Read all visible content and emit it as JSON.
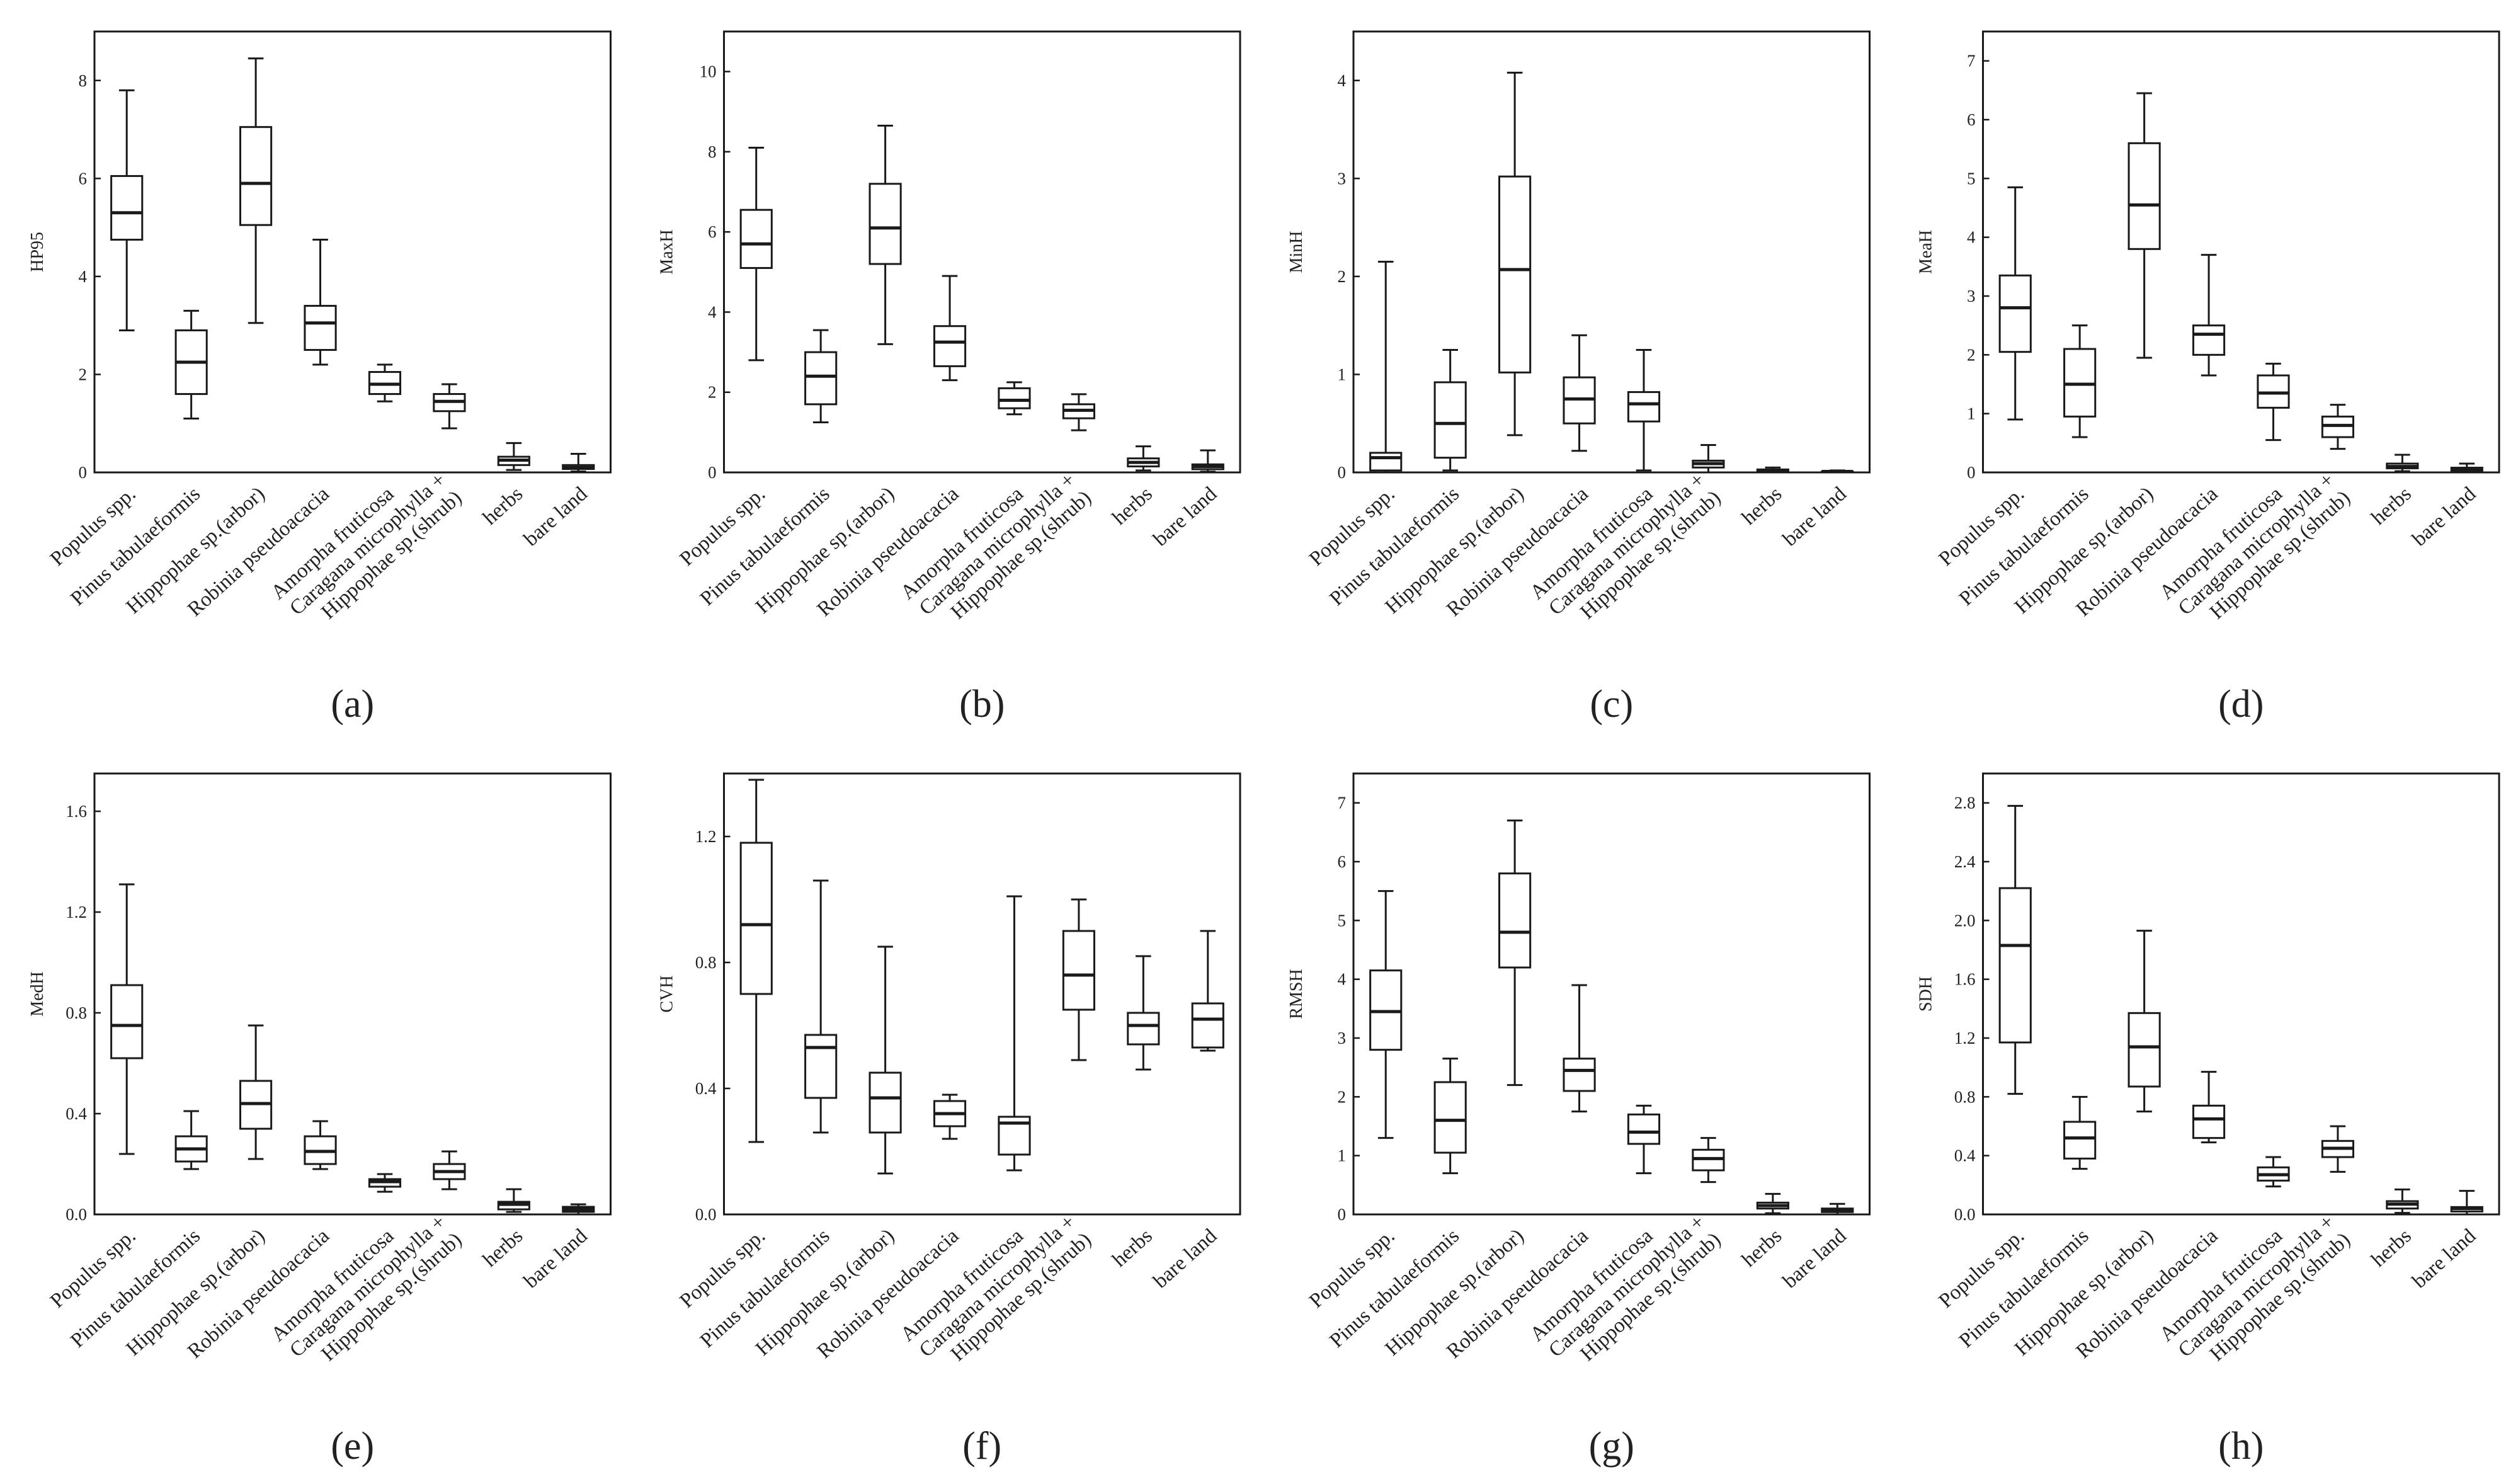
{
  "chart_data": [
    {
      "type": "box",
      "panel_label": "(a)",
      "ylabel": "HP95",
      "ylim": [
        0,
        9
      ],
      "yticks": [
        0,
        2,
        4,
        6,
        8
      ],
      "categories": [
        "Populus spp.",
        "Pinus tabulaeformis",
        "Hippophae sp.(arbor)",
        "Robinia pseudoacacia",
        "Amorpha fruticosa",
        "Caragana microphylla +|Hippophae sp.(shrub)",
        "herbs",
        "bare land"
      ],
      "series": [
        {
          "name": "Populus spp.",
          "min": 2.9,
          "q1": 4.75,
          "median": 5.3,
          "q3": 6.05,
          "max": 7.8
        },
        {
          "name": "Pinus tabulaeformis",
          "min": 1.1,
          "q1": 1.6,
          "median": 2.25,
          "q3": 2.9,
          "max": 3.3
        },
        {
          "name": "Hippophae sp.(arbor)",
          "min": 3.05,
          "q1": 5.05,
          "median": 5.9,
          "q3": 7.05,
          "max": 8.45
        },
        {
          "name": "Robinia pseudoacacia",
          "min": 2.2,
          "q1": 2.5,
          "median": 3.05,
          "q3": 3.4,
          "max": 4.75
        },
        {
          "name": "Amorpha fruticosa",
          "min": 1.45,
          "q1": 1.6,
          "median": 1.8,
          "q3": 2.05,
          "max": 2.2
        },
        {
          "name": "Caragana microphylla + Hippophae sp.(shrub)",
          "min": 0.9,
          "q1": 1.25,
          "median": 1.45,
          "q3": 1.6,
          "max": 1.8
        },
        {
          "name": "herbs",
          "min": 0.05,
          "q1": 0.15,
          "median": 0.25,
          "q3": 0.32,
          "max": 0.6
        },
        {
          "name": "bare land",
          "min": 0.02,
          "q1": 0.07,
          "median": 0.1,
          "q3": 0.15,
          "max": 0.38
        }
      ]
    },
    {
      "type": "box",
      "panel_label": "(b)",
      "ylabel": "MaxH",
      "ylim": [
        0,
        11
      ],
      "yticks": [
        0,
        2,
        4,
        6,
        8,
        10
      ],
      "categories": [
        "Populus spp.",
        "Pinus tabulaeformis",
        "Hippophae sp.(arbor)",
        "Robinia pseudoacacia",
        "Amorpha fruticosa",
        "Caragana microphylla +|Hippophae sp.(shrub)",
        "herbs",
        "bare land"
      ],
      "series": [
        {
          "name": "Populus spp.",
          "min": 2.8,
          "q1": 5.1,
          "median": 5.7,
          "q3": 6.55,
          "max": 8.1
        },
        {
          "name": "Pinus tabulaeformis",
          "min": 1.25,
          "q1": 1.7,
          "median": 2.4,
          "q3": 3.0,
          "max": 3.55
        },
        {
          "name": "Hippophae sp.(arbor)",
          "min": 3.2,
          "q1": 5.2,
          "median": 6.1,
          "q3": 7.2,
          "max": 8.65
        },
        {
          "name": "Robinia pseudoacacia",
          "min": 2.3,
          "q1": 2.65,
          "median": 3.25,
          "q3": 3.65,
          "max": 4.9
        },
        {
          "name": "Amorpha fruticosa",
          "min": 1.45,
          "q1": 1.6,
          "median": 1.8,
          "q3": 2.1,
          "max": 2.25
        },
        {
          "name": "Caragana microphylla + Hippophae sp.(shrub)",
          "min": 1.05,
          "q1": 1.35,
          "median": 1.55,
          "q3": 1.7,
          "max": 1.95
        },
        {
          "name": "herbs",
          "min": 0.05,
          "q1": 0.15,
          "median": 0.25,
          "q3": 0.35,
          "max": 0.65
        },
        {
          "name": "bare land",
          "min": 0.02,
          "q1": 0.08,
          "median": 0.15,
          "q3": 0.2,
          "max": 0.55
        }
      ]
    },
    {
      "type": "box",
      "panel_label": "(c)",
      "ylabel": "MinH",
      "ylim": [
        0,
        4.5
      ],
      "yticks": [
        0,
        1,
        2,
        3,
        4
      ],
      "categories": [
        "Populus spp.",
        "Pinus tabulaeformis",
        "Hippophae sp.(arbor)",
        "Robinia pseudoacacia",
        "Amorpha fruticosa",
        "Caragana microphylla +|Hippophae sp.(shrub)",
        "herbs",
        "bare land"
      ],
      "series": [
        {
          "name": "Populus spp.",
          "min": 0.0,
          "q1": 0.02,
          "median": 0.15,
          "q3": 0.2,
          "max": 2.15
        },
        {
          "name": "Pinus tabulaeformis",
          "min": 0.02,
          "q1": 0.15,
          "median": 0.5,
          "q3": 0.92,
          "max": 1.25
        },
        {
          "name": "Hippophae sp.(arbor)",
          "min": 0.38,
          "q1": 1.02,
          "median": 2.07,
          "q3": 3.02,
          "max": 4.08
        },
        {
          "name": "Robinia pseudoacacia",
          "min": 0.22,
          "q1": 0.5,
          "median": 0.75,
          "q3": 0.97,
          "max": 1.4
        },
        {
          "name": "Amorpha fruticosa",
          "min": 0.02,
          "q1": 0.52,
          "median": 0.7,
          "q3": 0.82,
          "max": 1.25
        },
        {
          "name": "Caragana microphylla + Hippophae sp.(shrub)",
          "min": 0.0,
          "q1": 0.05,
          "median": 0.09,
          "q3": 0.12,
          "max": 0.28
        },
        {
          "name": "herbs",
          "min": 0.0,
          "q1": 0.01,
          "median": 0.02,
          "q3": 0.03,
          "max": 0.05
        },
        {
          "name": "bare land",
          "min": 0.0,
          "q1": 0.0,
          "median": 0.01,
          "q3": 0.01,
          "max": 0.02
        }
      ]
    },
    {
      "type": "box",
      "panel_label": "(d)",
      "ylabel": "MeaH",
      "ylim": [
        0,
        7.5
      ],
      "yticks": [
        0,
        1,
        2,
        3,
        4,
        5,
        6,
        7
      ],
      "categories": [
        "Populus spp.",
        "Pinus tabulaeformis",
        "Hippophae sp.(arbor)",
        "Robinia pseudoacacia",
        "Amorpha fruticosa",
        "Caragana microphylla +|Hippophae sp.(shrub)",
        "herbs",
        "bare land"
      ],
      "series": [
        {
          "name": "Populus spp.",
          "min": 0.9,
          "q1": 2.05,
          "median": 2.8,
          "q3": 3.35,
          "max": 4.85
        },
        {
          "name": "Pinus tabulaeformis",
          "min": 0.6,
          "q1": 0.95,
          "median": 1.5,
          "q3": 2.1,
          "max": 2.5
        },
        {
          "name": "Hippophae sp.(arbor)",
          "min": 1.95,
          "q1": 3.8,
          "median": 4.55,
          "q3": 5.6,
          "max": 6.45
        },
        {
          "name": "Robinia pseudoacacia",
          "min": 1.65,
          "q1": 2.0,
          "median": 2.35,
          "q3": 2.5,
          "max": 3.7
        },
        {
          "name": "Amorpha fruticosa",
          "min": 0.55,
          "q1": 1.1,
          "median": 1.35,
          "q3": 1.65,
          "max": 1.85
        },
        {
          "name": "Caragana microphylla + Hippophae sp.(shrub)",
          "min": 0.4,
          "q1": 0.6,
          "median": 0.8,
          "q3": 0.95,
          "max": 1.15
        },
        {
          "name": "herbs",
          "min": 0.02,
          "q1": 0.07,
          "median": 0.1,
          "q3": 0.15,
          "max": 0.3
        },
        {
          "name": "bare land",
          "min": 0.0,
          "q1": 0.03,
          "median": 0.06,
          "q3": 0.08,
          "max": 0.15
        }
      ]
    },
    {
      "type": "box",
      "panel_label": "(e)",
      "ylabel": "MedH",
      "ylim": [
        0,
        1.75
      ],
      "yticks": [
        0,
        0.4,
        0.8,
        1.2,
        1.6
      ],
      "ytick_labels": [
        "0.0",
        "0.4",
        "0.8",
        "1.2",
        "1.6"
      ],
      "categories": [
        "Populus spp.",
        "Pinus tabulaeformis",
        "Hippophae sp.(arbor)",
        "Robinia pseudoacacia",
        "Amorpha fruticosa",
        "Caragana microphylla +|Hippophae sp.(shrub)",
        "herbs",
        "bare land"
      ],
      "series": [
        {
          "name": "Populus spp.",
          "min": 0.24,
          "q1": 0.62,
          "median": 0.75,
          "q3": 0.91,
          "max": 1.31
        },
        {
          "name": "Pinus tabulaeformis",
          "min": 0.18,
          "q1": 0.21,
          "median": 0.26,
          "q3": 0.31,
          "max": 0.41
        },
        {
          "name": "Hippophae sp.(arbor)",
          "min": 0.22,
          "q1": 0.34,
          "median": 0.44,
          "q3": 0.53,
          "max": 0.75
        },
        {
          "name": "Robinia pseudoacacia",
          "min": 0.18,
          "q1": 0.2,
          "median": 0.25,
          "q3": 0.31,
          "max": 0.37
        },
        {
          "name": "Amorpha fruticosa",
          "min": 0.09,
          "q1": 0.11,
          "median": 0.13,
          "q3": 0.14,
          "max": 0.16
        },
        {
          "name": "Caragana microphylla + Hippophae sp.(shrub)",
          "min": 0.1,
          "q1": 0.14,
          "median": 0.17,
          "q3": 0.2,
          "max": 0.25
        },
        {
          "name": "herbs",
          "min": 0.01,
          "q1": 0.02,
          "median": 0.04,
          "q3": 0.05,
          "max": 0.1
        },
        {
          "name": "bare land",
          "min": 0.0,
          "q1": 0.01,
          "median": 0.02,
          "q3": 0.03,
          "max": 0.04
        }
      ]
    },
    {
      "type": "box",
      "panel_label": "(f)",
      "ylabel": "CVH",
      "ylim": [
        0,
        1.4
      ],
      "yticks": [
        0,
        0.4,
        0.8,
        1.2
      ],
      "ytick_labels": [
        "0.0",
        "0.4",
        "0.8",
        "1.2"
      ],
      "categories": [
        "Populus spp.",
        "Pinus tabulaeformis",
        "Hippophae sp.(arbor)",
        "Robinia pseudoacacia",
        "Amorpha fruticosa",
        "Caragana microphylla +|Hippophae sp.(shrub)",
        "herbs",
        "bare land"
      ],
      "series": [
        {
          "name": "Populus spp.",
          "min": 0.23,
          "q1": 0.7,
          "median": 0.92,
          "q3": 1.18,
          "max": 1.38
        },
        {
          "name": "Pinus tabulaeformis",
          "min": 0.26,
          "q1": 0.37,
          "median": 0.53,
          "q3": 0.57,
          "max": 1.06
        },
        {
          "name": "Hippophae sp.(arbor)",
          "min": 0.13,
          "q1": 0.26,
          "median": 0.37,
          "q3": 0.45,
          "max": 0.85
        },
        {
          "name": "Robinia pseudoacacia",
          "min": 0.24,
          "q1": 0.28,
          "median": 0.32,
          "q3": 0.36,
          "max": 0.38
        },
        {
          "name": "Amorpha fruticosa",
          "min": 0.14,
          "q1": 0.19,
          "median": 0.29,
          "q3": 0.31,
          "max": 1.01
        },
        {
          "name": "Caragana microphylla + Hippophae sp.(shrub)",
          "min": 0.49,
          "q1": 0.65,
          "median": 0.76,
          "q3": 0.9,
          "max": 1.0
        },
        {
          "name": "herbs",
          "min": 0.46,
          "q1": 0.54,
          "median": 0.6,
          "q3": 0.64,
          "max": 0.82
        },
        {
          "name": "bare land",
          "min": 0.52,
          "q1": 0.53,
          "median": 0.62,
          "q3": 0.67,
          "max": 0.9
        }
      ]
    },
    {
      "type": "box",
      "panel_label": "(g)",
      "ylabel": "RMSH",
      "ylim": [
        0,
        7.5
      ],
      "yticks": [
        0,
        1,
        2,
        3,
        4,
        5,
        6,
        7
      ],
      "categories": [
        "Populus spp.",
        "Pinus tabulaeformis",
        "Hippophae sp.(arbor)",
        "Robinia pseudoacacia",
        "Amorpha fruticosa",
        "Caragana microphylla +|Hippophae sp.(shrub)",
        "herbs",
        "bare land"
      ],
      "series": [
        {
          "name": "Populus spp.",
          "min": 1.3,
          "q1": 2.8,
          "median": 3.45,
          "q3": 4.15,
          "max": 5.5
        },
        {
          "name": "Pinus tabulaeformis",
          "min": 0.7,
          "q1": 1.05,
          "median": 1.6,
          "q3": 2.25,
          "max": 2.65
        },
        {
          "name": "Hippophae sp.(arbor)",
          "min": 2.2,
          "q1": 4.2,
          "median": 4.8,
          "q3": 5.8,
          "max": 6.7
        },
        {
          "name": "Robinia pseudoacacia",
          "min": 1.75,
          "q1": 2.1,
          "median": 2.45,
          "q3": 2.65,
          "max": 3.9
        },
        {
          "name": "Amorpha fruticosa",
          "min": 0.7,
          "q1": 1.2,
          "median": 1.4,
          "q3": 1.7,
          "max": 1.85
        },
        {
          "name": "Caragana microphylla + Hippophae sp.(shrub)",
          "min": 0.55,
          "q1": 0.75,
          "median": 0.95,
          "q3": 1.1,
          "max": 1.3
        },
        {
          "name": "herbs",
          "min": 0.02,
          "q1": 0.1,
          "median": 0.15,
          "q3": 0.2,
          "max": 0.35
        },
        {
          "name": "bare land",
          "min": 0.0,
          "q1": 0.04,
          "median": 0.07,
          "q3": 0.1,
          "max": 0.18
        }
      ]
    },
    {
      "type": "box",
      "panel_label": "(h)",
      "ylabel": "SDH",
      "ylim": [
        0,
        3.0
      ],
      "yticks": [
        0,
        0.4,
        0.8,
        1.2,
        1.6,
        2.0,
        2.4,
        2.8
      ],
      "ytick_labels": [
        "0.0",
        "0.4",
        "0.8",
        "1.2",
        "1.6",
        "2.0",
        "2.4",
        "2.8"
      ],
      "categories": [
        "Populus spp.",
        "Pinus tabulaeformis",
        "Hippophae sp.(arbor)",
        "Robinia pseudoacacia",
        "Amorpha fruticosa",
        "Caragana microphylla +|Hippophae sp.(shrub)",
        "herbs",
        "bare land"
      ],
      "series": [
        {
          "name": "Populus spp.",
          "min": 0.82,
          "q1": 1.17,
          "median": 1.83,
          "q3": 2.22,
          "max": 2.78
        },
        {
          "name": "Pinus tabulaeformis",
          "min": 0.31,
          "q1": 0.38,
          "median": 0.52,
          "q3": 0.63,
          "max": 0.8
        },
        {
          "name": "Hippophae sp.(arbor)",
          "min": 0.7,
          "q1": 0.87,
          "median": 1.14,
          "q3": 1.37,
          "max": 1.93
        },
        {
          "name": "Robinia pseudoacacia",
          "min": 0.49,
          "q1": 0.52,
          "median": 0.65,
          "q3": 0.74,
          "max": 0.97
        },
        {
          "name": "Amorpha fruticosa",
          "min": 0.19,
          "q1": 0.23,
          "median": 0.27,
          "q3": 0.32,
          "max": 0.39
        },
        {
          "name": "Caragana microphylla + Hippophae sp.(shrub)",
          "min": 0.29,
          "q1": 0.39,
          "median": 0.45,
          "q3": 0.5,
          "max": 0.6
        },
        {
          "name": "herbs",
          "min": 0.01,
          "q1": 0.04,
          "median": 0.07,
          "q3": 0.09,
          "max": 0.17
        },
        {
          "name": "bare land",
          "min": 0.0,
          "q1": 0.02,
          "median": 0.04,
          "q3": 0.05,
          "max": 0.16
        }
      ]
    }
  ]
}
